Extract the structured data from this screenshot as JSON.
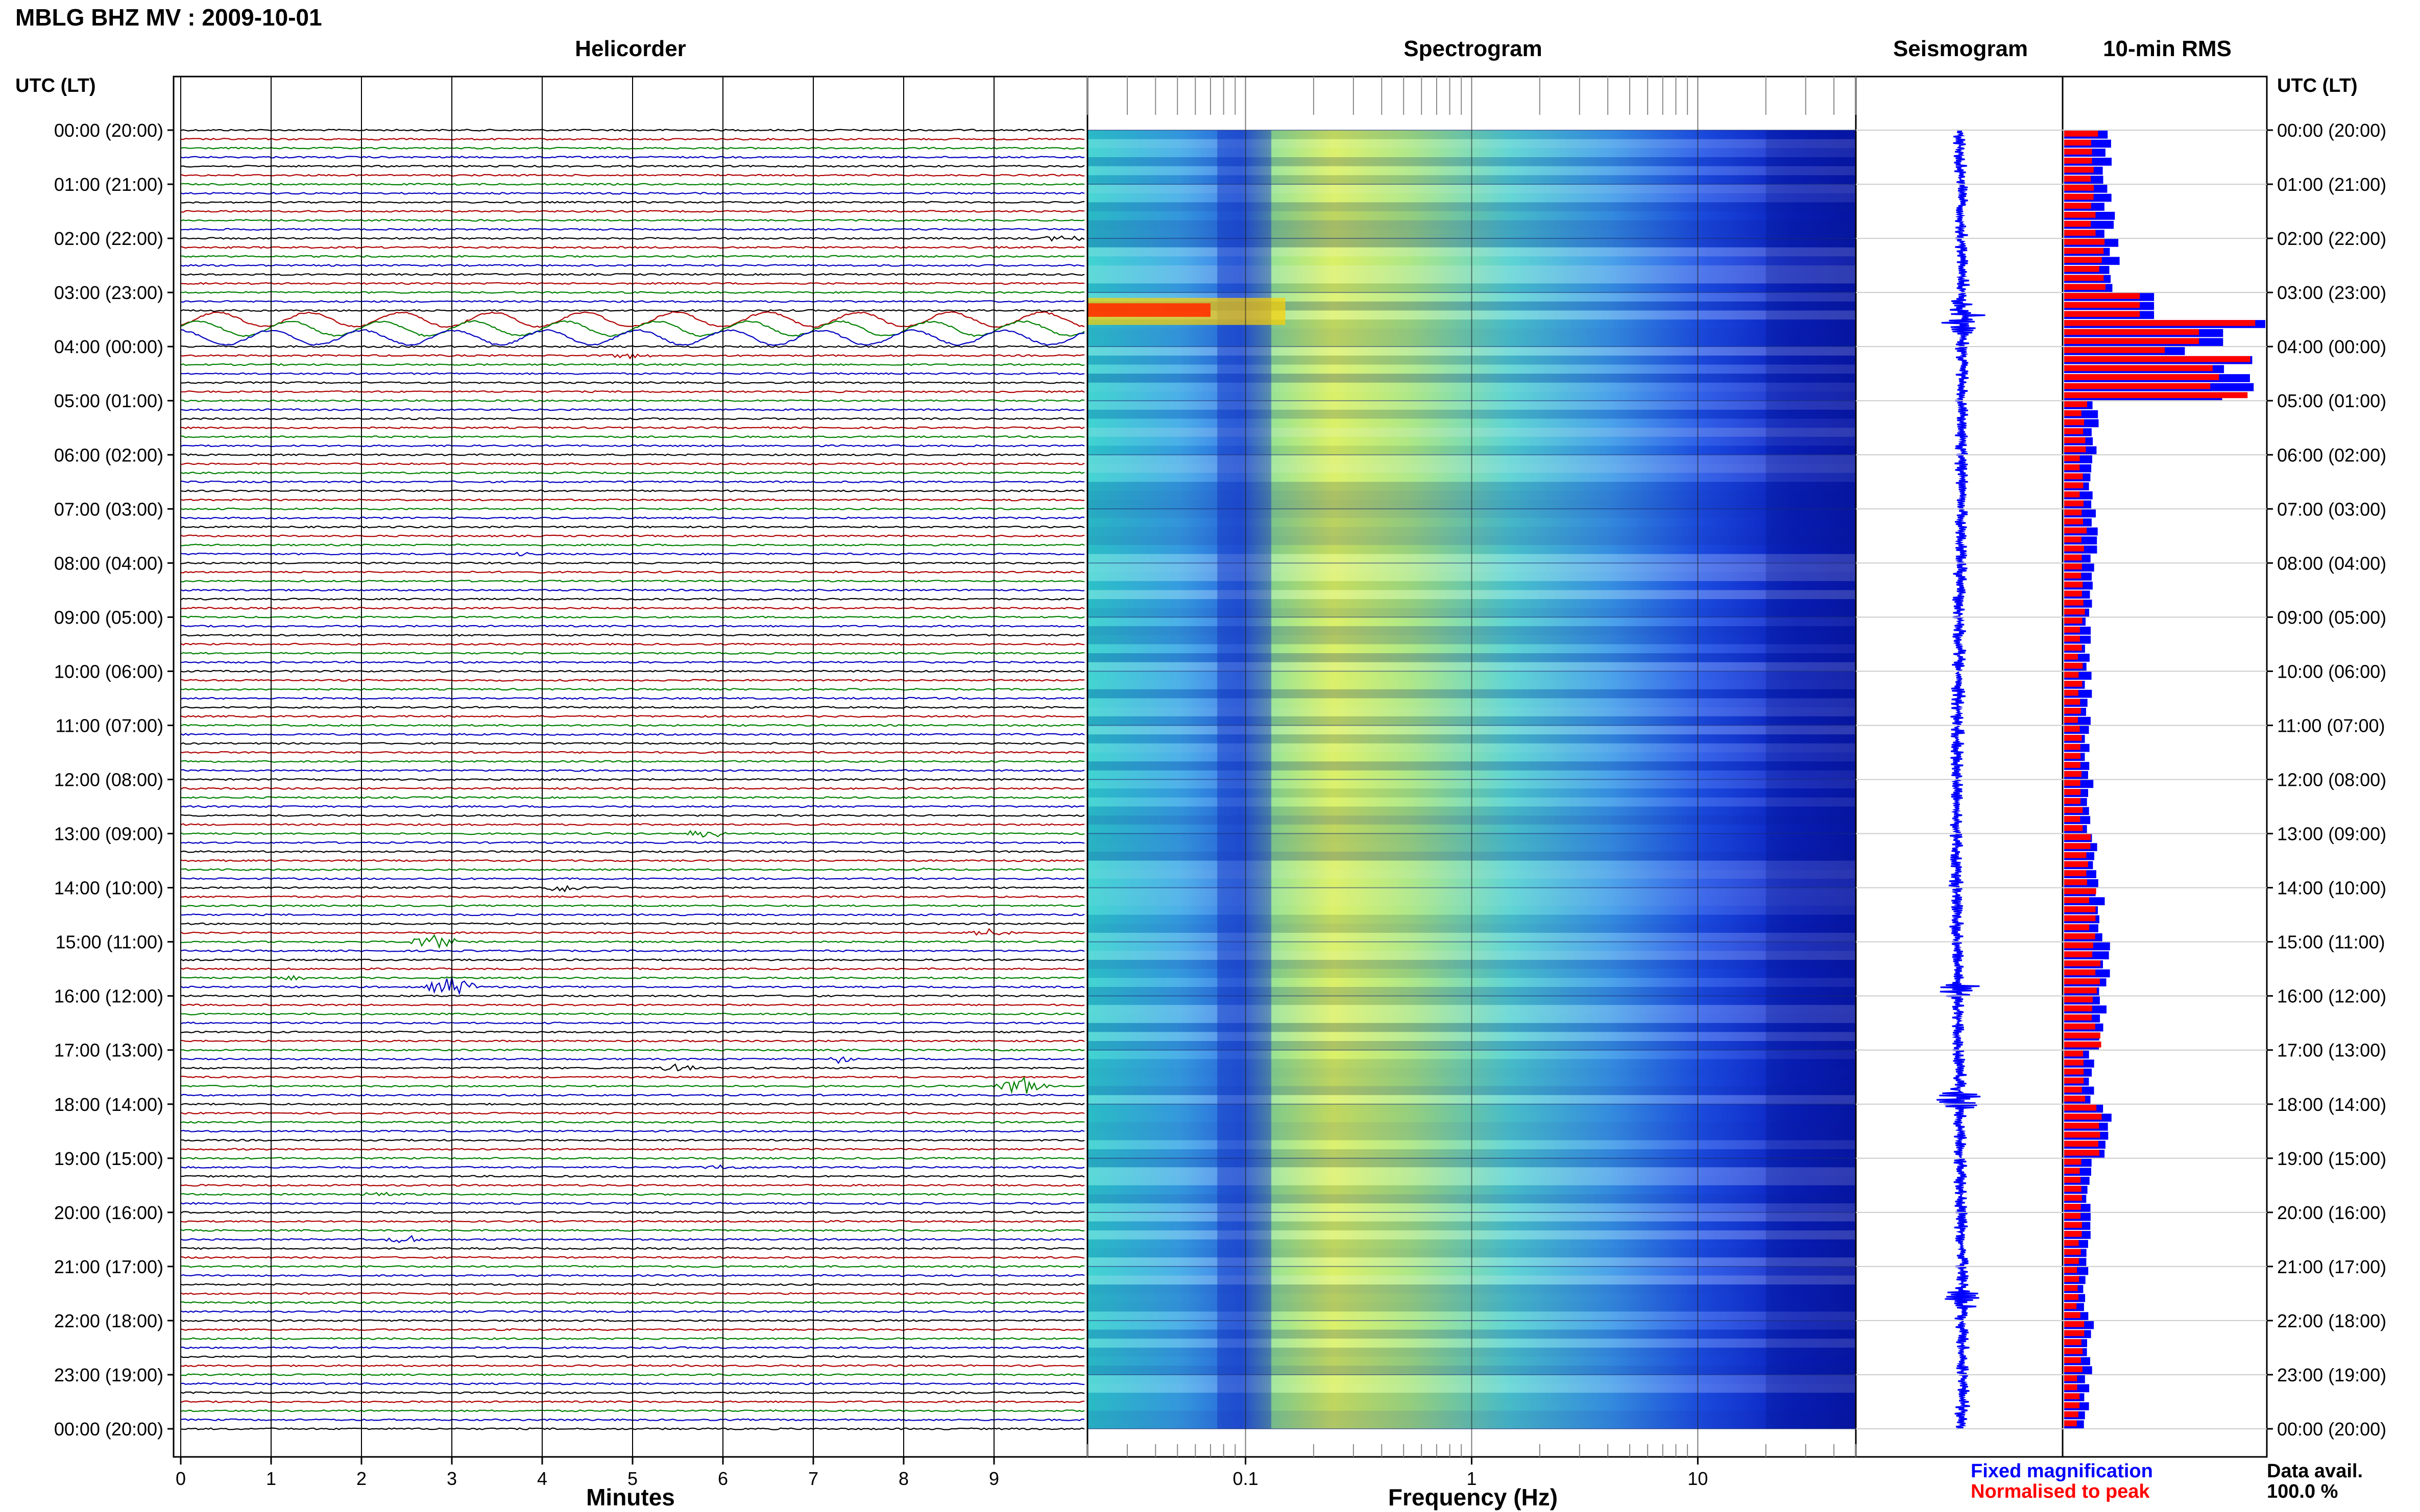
{
  "header": {
    "station_title": "MBLG BHZ MV : 2009-10-01"
  },
  "panels": {
    "helicorder_title": "Helicorder",
    "spectrogram_title": "Spectrogram",
    "seismogram_title": "Seismogram",
    "rms_title": "10-min RMS"
  },
  "left_axis": {
    "header": "UTC (LT)",
    "labels": [
      "00:00 (20:00)",
      "01:00 (21:00)",
      "02:00 (22:00)",
      "03:00 (23:00)",
      "04:00 (00:00)",
      "05:00 (01:00)",
      "06:00 (02:00)",
      "07:00 (03:00)",
      "08:00 (04:00)",
      "09:00 (05:00)",
      "10:00 (06:00)",
      "11:00 (07:00)",
      "12:00 (08:00)",
      "13:00 (09:00)",
      "14:00 (10:00)",
      "15:00 (11:00)",
      "16:00 (12:00)",
      "17:00 (13:00)",
      "18:00 (14:00)",
      "19:00 (15:00)",
      "20:00 (16:00)",
      "21:00 (17:00)",
      "22:00 (18:00)",
      "23:00 (19:00)",
      "00:00 (20:00)"
    ]
  },
  "right_axis": {
    "header": "UTC (LT)",
    "labels": [
      "00:00 (20:00)",
      "01:00 (21:00)",
      "02:00 (22:00)",
      "03:00 (23:00)",
      "04:00 (00:00)",
      "05:00 (01:00)",
      "06:00 (02:00)",
      "07:00 (03:00)",
      "08:00 (04:00)",
      "09:00 (05:00)",
      "10:00 (06:00)",
      "11:00 (07:00)",
      "12:00 (08:00)",
      "13:00 (09:00)",
      "14:00 (10:00)",
      "15:00 (11:00)",
      "16:00 (12:00)",
      "17:00 (13:00)",
      "18:00 (14:00)",
      "19:00 (15:00)",
      "20:00 (16:00)",
      "21:00 (17:00)",
      "22:00 (18:00)",
      "23:00 (19:00)",
      "00:00 (20:00)"
    ]
  },
  "helicorder": {
    "xlabel": "Minutes",
    "x_ticks": [
      "0",
      "1",
      "2",
      "3",
      "4",
      "5",
      "6",
      "7",
      "8",
      "9"
    ],
    "xlim": [
      0,
      10
    ],
    "trace_colors": [
      "#000000",
      "#b00000",
      "#008000",
      "#0000c0"
    ],
    "lines_per_hour": 6,
    "total_lines": 144,
    "long_period_hours": [
      3
    ],
    "events": [
      {
        "line": 12,
        "minute": 9.8,
        "amp": 3,
        "color": "#000000"
      },
      {
        "line": 25,
        "minute": 5.0,
        "amp": 2,
        "color": "#000000"
      },
      {
        "line": 47,
        "minute": 3.7,
        "amp": 1,
        "color": "#000000"
      },
      {
        "line": 70,
        "minute": 0.4,
        "amp": 1,
        "color": "#b00000"
      },
      {
        "line": 78,
        "minute": 5.8,
        "amp": 4,
        "color": "#0000c0"
      },
      {
        "line": 82,
        "minute": 8.2,
        "amp": 1,
        "color": "#0000c0"
      },
      {
        "line": 84,
        "minute": 4.2,
        "amp": 4,
        "color": "#000000"
      },
      {
        "line": 89,
        "minute": 9.0,
        "amp": 3,
        "color": "#000000"
      },
      {
        "line": 90,
        "minute": 2.8,
        "amp": 6,
        "color": "#0000c0"
      },
      {
        "line": 95,
        "minute": 3.0,
        "amp": 8,
        "color": "#000000"
      },
      {
        "line": 94,
        "minute": 1.2,
        "amp": 2,
        "color": "#008000"
      },
      {
        "line": 103,
        "minute": 7.3,
        "amp": 3,
        "color": "#b00000"
      },
      {
        "line": 104,
        "minute": 5.5,
        "amp": 3,
        "color": "#0000c0"
      },
      {
        "line": 106,
        "minute": 9.3,
        "amp": 8,
        "color": "#008000"
      },
      {
        "line": 118,
        "minute": 2.2,
        "amp": 2,
        "color": "#b00000"
      },
      {
        "line": 123,
        "minute": 2.5,
        "amp": 3,
        "color": "#b00000"
      },
      {
        "line": 115,
        "minute": 6.0,
        "amp": 2,
        "color": "#0000c0"
      }
    ]
  },
  "spectrogram": {
    "xlabel": "Frequency (Hz)",
    "x_ticks": [
      "0.1",
      "1",
      "10"
    ],
    "x_tick_values": [
      0.1,
      1,
      10
    ],
    "xlim": [
      0.02,
      50
    ],
    "x_scale": "log"
  },
  "seismogram": {
    "color": "#0000ff"
  },
  "chart_data": [
    {
      "type": "bar",
      "name": "10-min RMS",
      "orientation": "horizontal",
      "ylim_hours": [
        0,
        24
      ],
      "bin_minutes": 10,
      "hourly_fixed": [
        0.22,
        0.22,
        0.25,
        0.3,
        0.9,
        0.15,
        0.14,
        0.15,
        0.13,
        0.12,
        0.12,
        0.12,
        0.13,
        0.16,
        0.18,
        0.2,
        0.2,
        0.14,
        0.22,
        0.12,
        0.12,
        0.11,
        0.13,
        0.11
      ],
      "hourly_normalised": [
        0.15,
        0.15,
        0.18,
        0.22,
        0.85,
        0.1,
        0.09,
        0.1,
        0.09,
        0.08,
        0.08,
        0.08,
        0.09,
        0.12,
        0.14,
        0.16,
        0.16,
        0.1,
        0.18,
        0.08,
        0.08,
        0.07,
        0.09,
        0.07
      ],
      "colors": {
        "fixed": "#0000ff",
        "normalised": "#ff0000"
      }
    }
  ],
  "legend": {
    "fixed": "Fixed magnification",
    "normalised": "Normalised to peak",
    "fixed_color": "#0000ff",
    "normalised_color": "#ff0000"
  },
  "availability": {
    "label": "Data avail.",
    "value": "100.0 %"
  }
}
